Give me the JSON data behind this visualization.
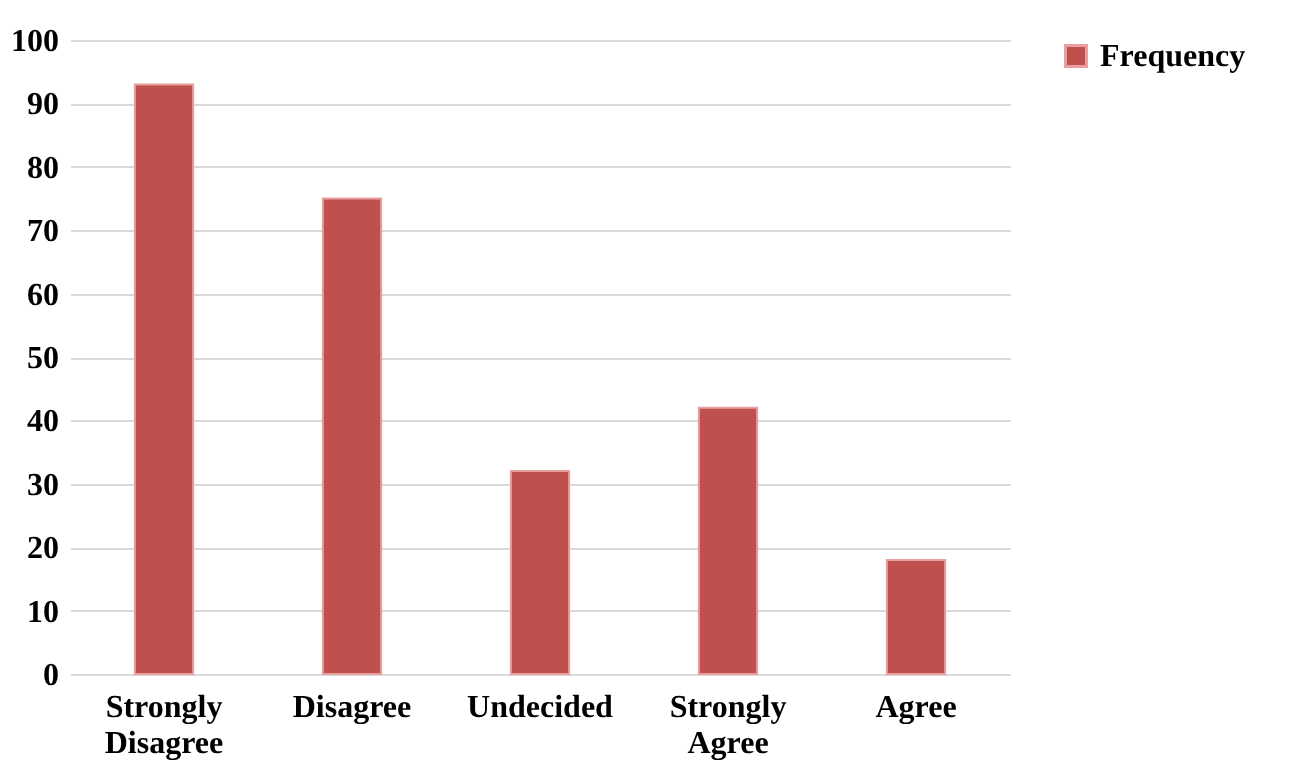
{
  "chart_data": {
    "type": "bar",
    "categories": [
      "Strongly Disagree",
      "Disagree",
      "Undecided",
      "Strongly Agree",
      "Agree"
    ],
    "series": [
      {
        "name": "Frequency",
        "color": "#c0504d",
        "values": [
          93,
          75,
          32,
          42,
          18
        ]
      }
    ],
    "ylim": [
      0,
      100
    ],
    "yticks": [
      0,
      10,
      20,
      30,
      40,
      50,
      60,
      70,
      80,
      90,
      100
    ],
    "grid": "y",
    "legend": "right"
  }
}
